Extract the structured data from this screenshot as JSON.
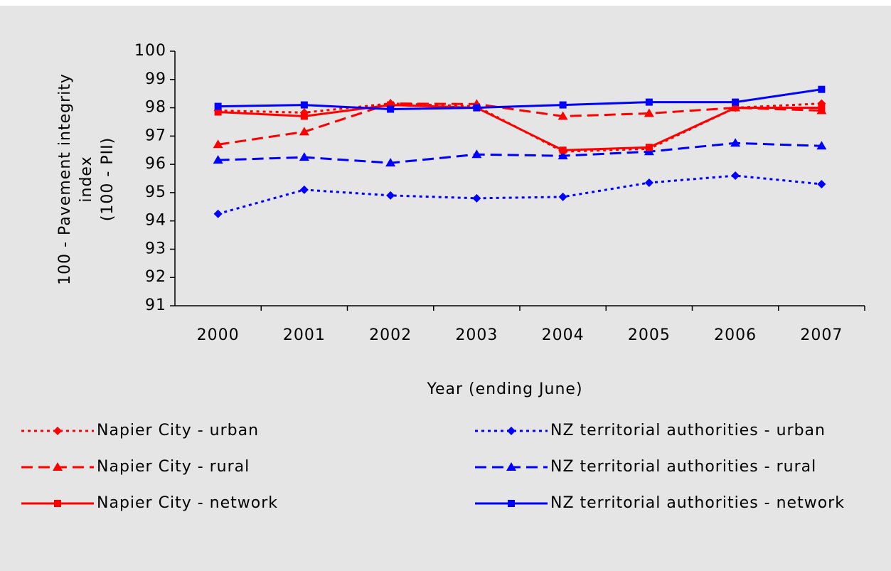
{
  "chart_data": {
    "type": "line",
    "y_label": [
      "100 - Pavement integrity",
      "index",
      "(100 - PII)"
    ],
    "x_label": "Year (ending June)",
    "categories": [
      "2000",
      "2001",
      "2002",
      "2003",
      "2004",
      "2005",
      "2006",
      "2007"
    ],
    "ylim": [
      91,
      100
    ],
    "yticks": [
      91,
      92,
      93,
      94,
      95,
      96,
      97,
      98,
      99,
      100
    ],
    "grid": false,
    "series": [
      {
        "name": "Napier City - urban",
        "color": "#ff0000",
        "dash": "dotted",
        "marker": "diamond",
        "values": [
          97.9,
          97.83,
          98.15,
          98.05,
          96.45,
          96.55,
          98.0,
          98.15
        ]
      },
      {
        "name": "NZ territorial authorities - urban",
        "color": "#0000ff",
        "dash": "dotted",
        "marker": "diamond",
        "values": [
          94.25,
          95.1,
          94.9,
          94.8,
          94.85,
          95.35,
          95.6,
          95.3
        ]
      },
      {
        "name": "Napier City - rural",
        "color": "#ff0000",
        "dash": "dashed",
        "marker": "triangle",
        "values": [
          96.7,
          97.15,
          98.15,
          98.13,
          97.7,
          97.8,
          98.0,
          97.9
        ]
      },
      {
        "name": "NZ territorial authorities - rural",
        "color": "#0000ff",
        "dash": "dashed",
        "marker": "triangle",
        "values": [
          96.15,
          96.25,
          96.05,
          96.35,
          96.3,
          96.45,
          96.75,
          96.65
        ]
      },
      {
        "name": "Napier City - network",
        "color": "#ff0000",
        "dash": "solid",
        "marker": "square",
        "values": [
          97.85,
          97.7,
          98.1,
          98.0,
          96.5,
          96.6,
          98.0,
          98.0
        ]
      },
      {
        "name": "NZ territorial authorities - network",
        "color": "#0000ff",
        "dash": "solid",
        "marker": "square",
        "values": [
          98.05,
          98.1,
          97.95,
          98.0,
          98.1,
          98.2,
          98.2,
          98.65
        ]
      }
    ]
  }
}
